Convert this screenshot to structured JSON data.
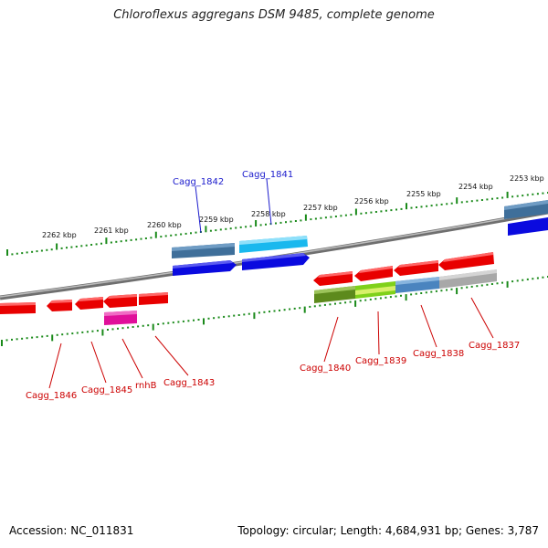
{
  "title": "Chloroflexus aggregans DSM 9485, complete genome",
  "footer": {
    "accession": "Accession: NC_011831",
    "stats": "Topology: circular; Length: 4,684,931 bp; Genes: 3,787"
  },
  "kbp_labels": [
    "2262 kbp",
    "2261 kbp",
    "2260 kbp",
    "2259 kbp",
    "2258 kbp",
    "2257 kbp",
    "2256 kbp",
    "2255 kbp",
    "2254 kbp",
    "2253 kbp"
  ],
  "labels_top": [
    "Cagg_1842",
    "Cagg_1841"
  ],
  "labels_bottom": [
    "Cagg_1846",
    "Cagg_1845",
    "rnhB",
    "Cagg_1843",
    "Cagg_1840",
    "Cagg_1839",
    "Cagg_1838",
    "Cagg_1837"
  ],
  "colors": {
    "label_top": "#1a1acc",
    "label_bottom": "#cc0000",
    "tick": "#1a8a1a",
    "backbone": "#8a8a8a"
  }
}
